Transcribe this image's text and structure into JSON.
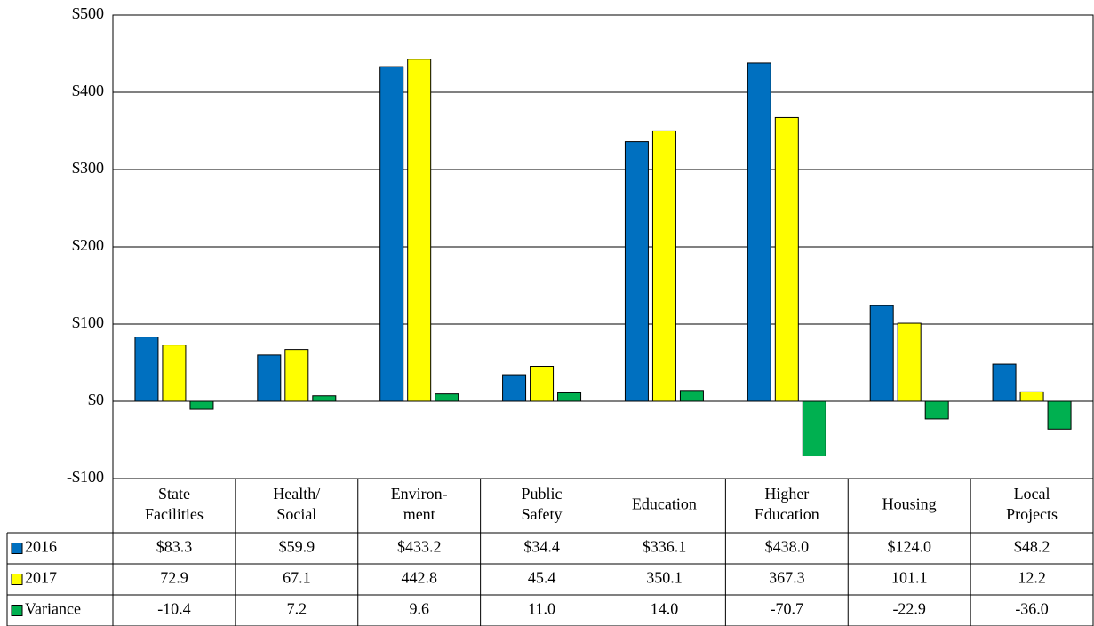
{
  "chart_data": {
    "type": "bar",
    "categories": [
      [
        "State",
        "Facilities"
      ],
      [
        "Health/",
        "Social"
      ],
      [
        "Environ-",
        "ment"
      ],
      [
        "Public",
        "Safety"
      ],
      [
        "Education"
      ],
      [
        "Higher",
        "Education"
      ],
      [
        "Housing"
      ],
      [
        "Local",
        "Projects"
      ]
    ],
    "series": [
      {
        "name": "2016",
        "color": "#0070c0",
        "values": [
          83.3,
          59.9,
          433.2,
          34.4,
          336.1,
          438.0,
          124.0,
          48.2
        ],
        "value_labels": [
          "$83.3",
          "$59.9",
          "$433.2",
          "$34.4",
          "$336.1",
          "$438.0",
          "$124.0",
          "$48.2"
        ]
      },
      {
        "name": "2017",
        "color": "#ffff00",
        "values": [
          72.9,
          67.1,
          442.8,
          45.4,
          350.1,
          367.3,
          101.1,
          12.2
        ]
      },
      {
        "name": "Variance",
        "color": "#00b050",
        "values": [
          -10.4,
          7.2,
          9.6,
          11.0,
          14.0,
          -70.7,
          -22.9,
          -36.0
        ],
        "value_labels": [
          "-10.4",
          "7.2",
          "9.6",
          "11.0",
          "14.0",
          "-70.7",
          "-22.9",
          "-36.0"
        ]
      }
    ],
    "ylim": [
      -100,
      500
    ],
    "yticks": [
      {
        "value": -100,
        "label": "-$100"
      },
      {
        "value": 0,
        "label": "$0"
      },
      {
        "value": 100,
        "label": "$100"
      },
      {
        "value": 200,
        "label": "$200"
      },
      {
        "value": 300,
        "label": "$300"
      },
      {
        "value": 400,
        "label": "$400"
      },
      {
        "value": 500,
        "label": "$500"
      }
    ],
    "grid": true,
    "data_table": true
  }
}
